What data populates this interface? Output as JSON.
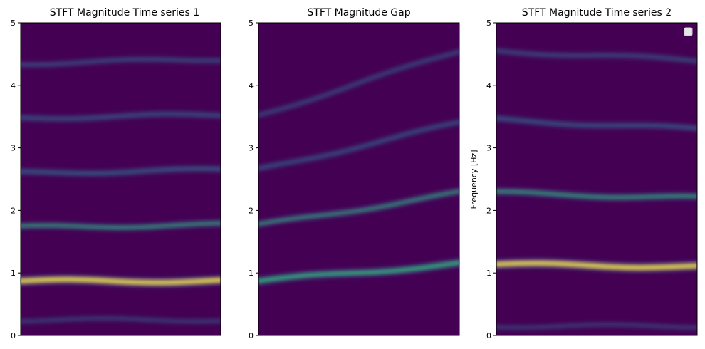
{
  "chart_data": [
    {
      "type": "heatmap",
      "title": "STFT Magnitude Time series 1",
      "xlabel": "",
      "ylabel": "",
      "ylim": [
        0,
        5
      ],
      "yticks": [
        "0",
        "1",
        "2",
        "3",
        "4",
        "5"
      ],
      "colormap": "viridis",
      "grid": false,
      "bands": [
        {
          "freq_start": 0.87,
          "freq_end": 0.87,
          "intensity": 0.95
        },
        {
          "freq_start": 1.73,
          "freq_end": 1.77,
          "intensity": 0.45
        },
        {
          "freq_start": 2.6,
          "freq_end": 2.65,
          "intensity": 0.38
        },
        {
          "freq_start": 3.48,
          "freq_end": 3.53,
          "intensity": 0.3
        },
        {
          "freq_start": 4.35,
          "freq_end": 4.42,
          "intensity": 0.22
        },
        {
          "freq_start": 0.25,
          "freq_end": 0.25,
          "intensity": 0.1
        }
      ]
    },
    {
      "type": "heatmap",
      "title": "STFT Magnitude Gap",
      "xlabel": "",
      "ylabel": "",
      "ylim": [
        0,
        5
      ],
      "yticks": [
        "0",
        "1",
        "2",
        "3",
        "4",
        "5"
      ],
      "colormap": "viridis",
      "grid": false,
      "bands": [
        {
          "freq_start": 0.87,
          "freq_end": 1.15,
          "intensity": 0.75
        },
        {
          "freq_start": 1.76,
          "freq_end": 2.28,
          "intensity": 0.42
        },
        {
          "freq_start": 2.65,
          "freq_end": 3.4,
          "intensity": 0.28
        },
        {
          "freq_start": 3.52,
          "freq_end": 4.55,
          "intensity": 0.18
        }
      ]
    },
    {
      "type": "heatmap",
      "title": "STFT Magnitude Time series 2",
      "xlabel": "",
      "ylabel": "Frequency [Hz]",
      "ylim": [
        0,
        5
      ],
      "yticks": [
        "0",
        "1",
        "2",
        "3",
        "4",
        "5"
      ],
      "colormap": "viridis",
      "grid": false,
      "legend": "top-right",
      "bands": [
        {
          "freq_start": 1.14,
          "freq_end": 1.1,
          "intensity": 0.95
        },
        {
          "freq_start": 2.28,
          "freq_end": 2.2,
          "intensity": 0.5
        },
        {
          "freq_start": 3.45,
          "freq_end": 3.3,
          "intensity": 0.35
        },
        {
          "freq_start": 4.55,
          "freq_end": 4.4,
          "intensity": 0.22
        },
        {
          "freq_start": 0.15,
          "freq_end": 0.15,
          "intensity": 0.1
        }
      ]
    }
  ],
  "colors": {
    "background": "#440154",
    "band_low": "#31688e",
    "band_mid": "#35b779",
    "band_high": "#fde725"
  }
}
